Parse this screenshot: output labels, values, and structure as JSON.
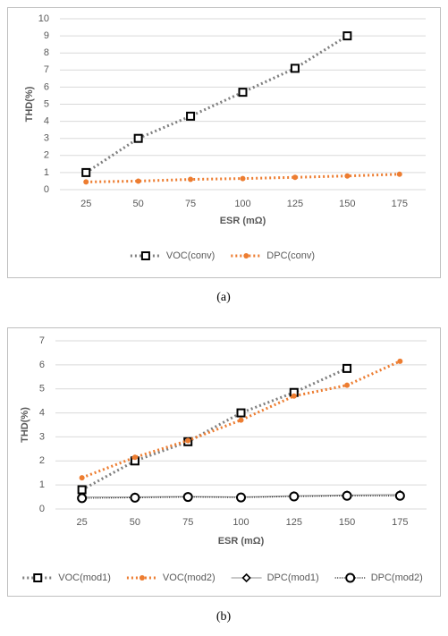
{
  "chart_data": [
    {
      "type": "line",
      "caption": "(a)",
      "x_label": "ESR (mΩ)",
      "y_label": "THD(%)",
      "categories": [
        "25",
        "50",
        "75",
        "100",
        "125",
        "150",
        "175"
      ],
      "ylim": [
        0,
        10
      ],
      "yticks": [
        0,
        1,
        2,
        3,
        4,
        5,
        6,
        7,
        8,
        9,
        10
      ],
      "grid": true,
      "legend": "bottom",
      "series": [
        {
          "name": "VOC(conv)",
          "color": "#7f7f7f",
          "marker": "square",
          "marker_color": "#000000",
          "dash": "dotted",
          "values": [
            1.0,
            3.0,
            4.3,
            5.7,
            7.1,
            9.0,
            null
          ]
        },
        {
          "name": "DPC(conv)",
          "color": "#ed7d31",
          "marker": "dot",
          "marker_color": "#ed7d31",
          "dash": "dotted",
          "values": [
            0.45,
            0.5,
            0.6,
            0.65,
            0.72,
            0.8,
            0.9
          ]
        }
      ]
    },
    {
      "type": "line",
      "caption": "(b)",
      "x_label": "ESR (mΩ)",
      "y_label": "THD(%)",
      "categories": [
        "25",
        "50",
        "75",
        "100",
        "125",
        "150",
        "175"
      ],
      "ylim": [
        0,
        7
      ],
      "yticks": [
        0,
        1,
        2,
        3,
        4,
        5,
        6,
        7
      ],
      "grid": true,
      "legend": "bottom",
      "series": [
        {
          "name": "VOC(mod1)",
          "color": "#7f7f7f",
          "marker": "square",
          "marker_color": "#000000",
          "dash": "dotted",
          "values": [
            0.8,
            2.0,
            2.8,
            4.0,
            4.85,
            5.85,
            null
          ]
        },
        {
          "name": "VOC(mod2)",
          "color": "#ed7d31",
          "marker": "dot",
          "marker_color": "#ed7d31",
          "dash": "dotted",
          "values": [
            1.3,
            2.15,
            2.85,
            3.7,
            4.7,
            5.15,
            6.15
          ]
        },
        {
          "name": "DPC(mod1)",
          "color": "#a6a6a6",
          "marker": "diamond",
          "marker_color": "#000000",
          "dash": "solid",
          "values": [
            0.5,
            0.5,
            0.52,
            0.5,
            0.55,
            0.58,
            0.6
          ]
        },
        {
          "name": "DPC(mod2)",
          "color": "#000000",
          "marker": "circle",
          "marker_color": "#000000",
          "dash": "fine",
          "values": [
            0.45,
            0.47,
            0.5,
            0.48,
            0.52,
            0.55,
            0.55
          ]
        }
      ]
    }
  ]
}
